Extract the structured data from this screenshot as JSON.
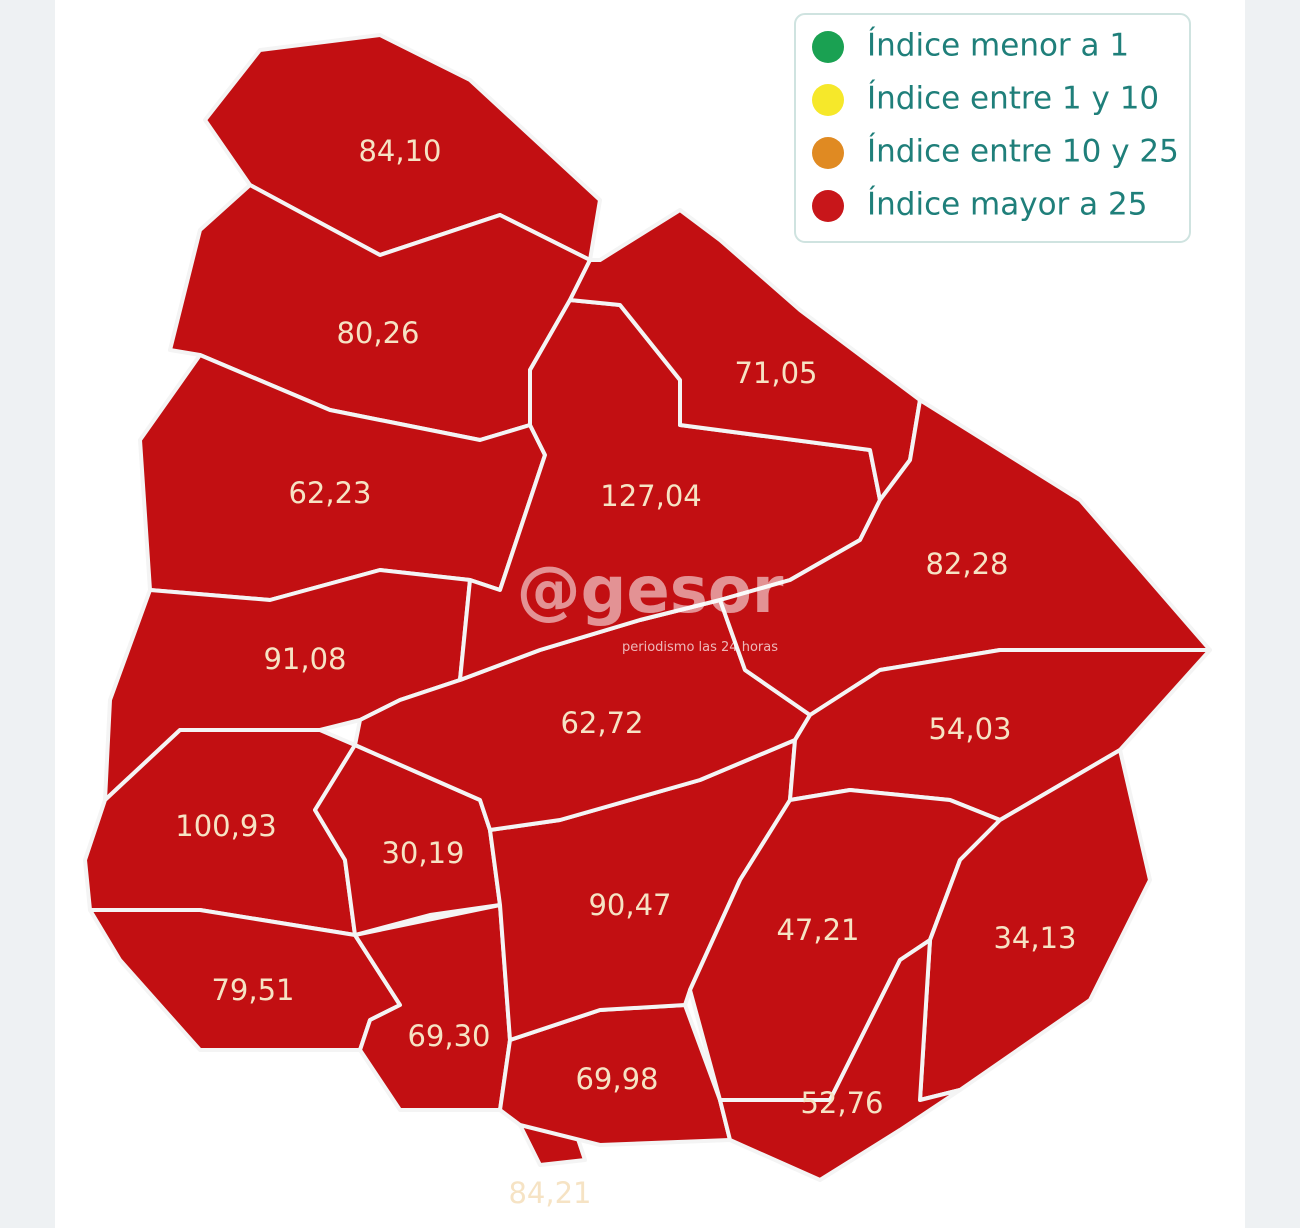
{
  "legend": {
    "items": [
      {
        "label": "Índice menor a 1",
        "color": "#1aa152"
      },
      {
        "label": "Índice entre 1 y 10",
        "color": "#f6e82a"
      },
      {
        "label": "Índice entre 10 y 25",
        "color": "#e08a22"
      },
      {
        "label": "Índice mayor a 25",
        "color": "#c8161a"
      }
    ]
  },
  "map": {
    "fill": "#c20f12",
    "regions": [
      {
        "label": "84,10"
      },
      {
        "label": "80,26"
      },
      {
        "label": "62,23"
      },
      {
        "label": "91,08"
      },
      {
        "label": "100,93"
      },
      {
        "label": "79,51"
      },
      {
        "label": "30,19"
      },
      {
        "label": "69,30"
      },
      {
        "label": "84,21"
      },
      {
        "label": "69,98"
      },
      {
        "label": "90,47"
      },
      {
        "label": "62,72"
      },
      {
        "label": "127,04"
      },
      {
        "label": "71,05"
      },
      {
        "label": "82,28"
      },
      {
        "label": "54,03"
      },
      {
        "label": "47,21"
      },
      {
        "label": "34,13"
      },
      {
        "label": "52,76"
      }
    ]
  },
  "watermark": {
    "logo": "@gesor",
    "tagline": "periodismo las 24 horas"
  }
}
